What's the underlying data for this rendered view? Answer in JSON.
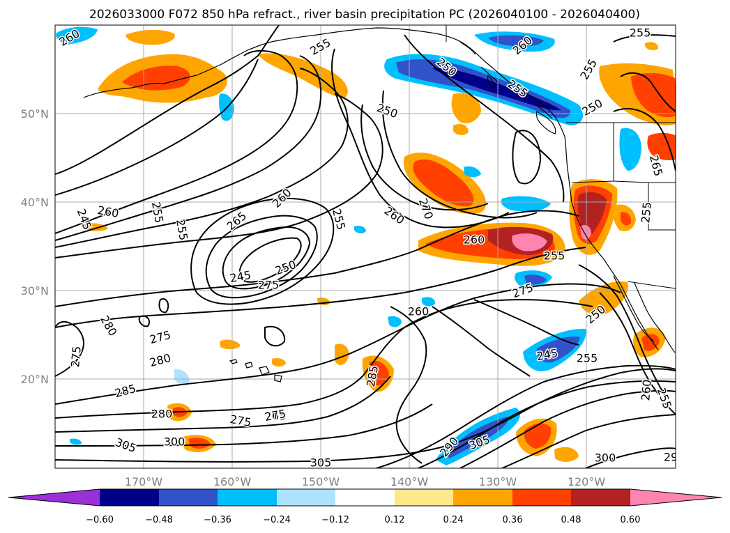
{
  "title": "2026033000 F072 850 hPa refract., river basin precipitation PC (2026040100 - 2026040400)",
  "map": {
    "lon_labels": [
      "170°W",
      "160°W",
      "150°W",
      "140°W",
      "130°W",
      "120°W"
    ],
    "lat_labels": [
      "50°N",
      "40°N",
      "30°N",
      "20°N"
    ],
    "gridlines": true,
    "coastline_color": "#000000",
    "contour_color": "#000000",
    "contour_labels": [
      "260",
      "255",
      "255",
      "250",
      "260",
      "255",
      "250",
      "245",
      "260",
      "255",
      "255",
      "255",
      "250",
      "260",
      "270",
      "265",
      "260",
      "255",
      "245",
      "250",
      "275",
      "260",
      "255",
      "275",
      "260",
      "250",
      "245",
      "255",
      "280",
      "275",
      "280",
      "275",
      "285",
      "285",
      "280",
      "275",
      "265",
      "275",
      "300",
      "305",
      "290",
      "305",
      "305",
      "300",
      "260",
      "255",
      "29",
      "265",
      "255"
    ]
  },
  "colorbar": {
    "ticks": [
      "−0.60",
      "−0.48",
      "−0.36",
      "−0.24",
      "−0.12",
      "0.12",
      "0.24",
      "0.36",
      "0.48",
      "0.60"
    ],
    "colors": [
      "#9b30d9",
      "#00008b",
      "#3152c8",
      "#00bfff",
      "#afe2ff",
      "#ffffff",
      "#ffe88a",
      "#ffa500",
      "#ff4000",
      "#b22222",
      "#ff85b0"
    ],
    "extend": "both"
  }
}
